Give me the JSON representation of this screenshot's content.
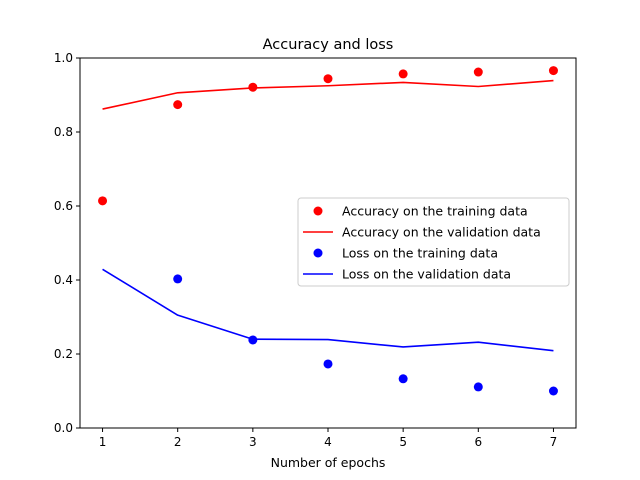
{
  "chart_data": {
    "type": "line",
    "title": "Accuracy and loss",
    "xlabel": "Number of epochs",
    "ylabel": "",
    "xlim": [
      0.7,
      7.3
    ],
    "ylim": [
      0.0,
      1.0
    ],
    "x_ticks": [
      1,
      2,
      3,
      4,
      5,
      6,
      7
    ],
    "x_tick_labels": [
      "1",
      "2",
      "3",
      "4",
      "5",
      "6",
      "7"
    ],
    "y_ticks": [
      0.0,
      0.2,
      0.4,
      0.6,
      0.8,
      1.0
    ],
    "y_tick_labels": [
      "0.0",
      "0.2",
      "0.4",
      "0.6",
      "0.8",
      "1.0"
    ],
    "grid": false,
    "legend_position": "center-right",
    "x": [
      1,
      2,
      3,
      4,
      5,
      6,
      7
    ],
    "series": [
      {
        "name": "Accuracy on the training data",
        "style": "markers",
        "color": "#ff0000",
        "values": [
          0.614,
          0.874,
          0.921,
          0.944,
          0.957,
          0.962,
          0.966
        ]
      },
      {
        "name": "Accuracy on the validation data",
        "style": "line",
        "color": "#ff0000",
        "values": [
          0.862,
          0.906,
          0.919,
          0.925,
          0.934,
          0.923,
          0.939
        ]
      },
      {
        "name": "Loss on the training data",
        "style": "markers",
        "color": "#0000ff",
        "values": [
          null,
          0.403,
          0.238,
          0.173,
          0.133,
          0.111,
          0.1
        ]
      },
      {
        "name": "Loss on the validation data",
        "style": "line",
        "color": "#0000ff",
        "values": [
          0.429,
          0.305,
          0.24,
          0.239,
          0.219,
          0.232,
          0.209
        ]
      }
    ]
  }
}
